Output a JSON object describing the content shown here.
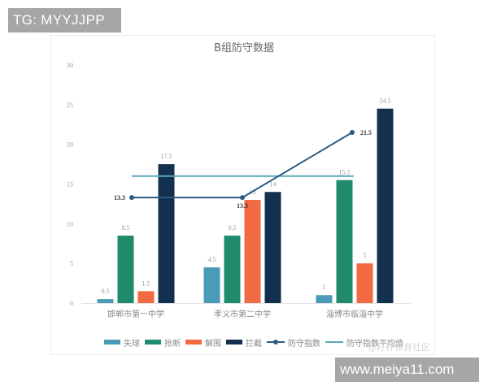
{
  "overlays": {
    "top_left_badge": "TG: MYYJJPP",
    "bottom_right_badge": "www.meiya11.com",
    "watermark": "@籽籽体育社区"
  },
  "chart_data": {
    "type": "bar",
    "title": "B组防守数据",
    "xlabel": "",
    "ylabel": "",
    "ylim": [
      0,
      30
    ],
    "yticks": [
      0,
      5,
      10,
      15,
      20,
      25,
      30
    ],
    "grid": false,
    "legend_position": "bottom",
    "categories": [
      "邯郸市第一中学",
      "孝义市第二中学",
      "淄博市临淄中学"
    ],
    "series": [
      {
        "name": "失球",
        "type": "bar",
        "color": "#4a9bb8",
        "values": [
          0.5,
          4.5,
          1
        ]
      },
      {
        "name": "抢断",
        "type": "bar",
        "color": "#1f8a6c",
        "values": [
          8.5,
          8.5,
          15.5
        ]
      },
      {
        "name": "解围",
        "type": "bar",
        "color": "#f26a41",
        "values": [
          1.5,
          13,
          5
        ]
      },
      {
        "name": "拦截",
        "type": "bar",
        "color": "#13304f",
        "values": [
          17.5,
          14,
          24.5
        ]
      },
      {
        "name": "防守指数",
        "type": "line",
        "color": "#2d5a80",
        "values": [
          13.3,
          13.3,
          21.5
        ]
      },
      {
        "name": "防守指数平均值",
        "type": "line",
        "color": "#5aa8b8",
        "values": [
          16,
          16,
          16
        ]
      }
    ],
    "value_labels": {
      "失球": [
        "0.5",
        "4.5",
        "1"
      ],
      "抢断": [
        "8.5",
        "8.5",
        "15.5"
      ],
      "解围": [
        "1.5",
        "13",
        "5"
      ],
      "拦截": [
        "17.5",
        "14",
        "24.5"
      ],
      "防守指数": [
        "13.3",
        "13.3",
        "21.5"
      ]
    }
  }
}
